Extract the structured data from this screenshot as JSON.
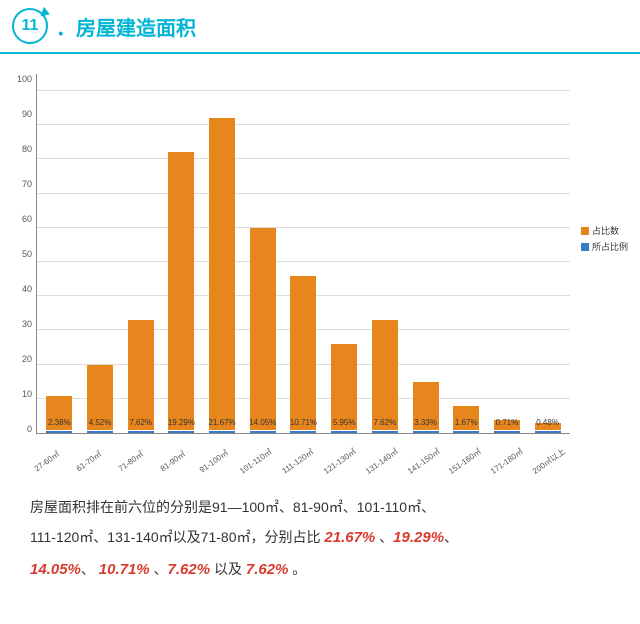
{
  "header": {
    "num": "11",
    "title": "．房屋建造面积"
  },
  "chart": {
    "ymax": 105,
    "yticks": [
      100,
      90,
      80,
      70,
      60,
      50,
      40,
      30,
      20,
      10,
      0
    ],
    "legend": [
      {
        "label": "占比数",
        "color": "#e8861e"
      },
      {
        "label": "所占比例",
        "color": "#3b7ac4"
      }
    ],
    "cats": [
      "27-60㎡",
      "61-70㎡",
      "71-80㎡",
      "81-90㎡",
      "91-100㎡",
      "101-110㎡",
      "111-120㎡",
      "121-130㎡",
      "131-140㎡",
      "141-150㎡",
      "151-160㎡",
      "171-180㎡",
      "200㎡以上"
    ],
    "vals": [
      10,
      19,
      32,
      81,
      91,
      59,
      45,
      25,
      32,
      14,
      7,
      3,
      2
    ],
    "pcts": [
      "2.38%",
      "4.52%",
      "7.62%",
      "19.29%",
      "21.67%",
      "14.05%",
      "10.71%",
      "5.95%",
      "7.62%",
      "3.33%",
      "1.67%",
      "0.71%",
      "0.48%"
    ]
  },
  "desc": {
    "p1a": "房屋面积排在前六位的分别是91—100㎡、81-90㎡、101-110㎡、",
    "p2a": "111-120㎡、131-140㎡以及71-80㎡，分别占比 ",
    "h1": "21.67%",
    "s1": " 、",
    "h2": "19.29%",
    "s2": "、",
    "h3": "14.05%",
    "s3": "、 ",
    "h4": "10.71%",
    "s4": " 、",
    "h5": "7.62%",
    "s5": " 以及 ",
    "h6": "7.62%",
    "s6": " 。"
  }
}
